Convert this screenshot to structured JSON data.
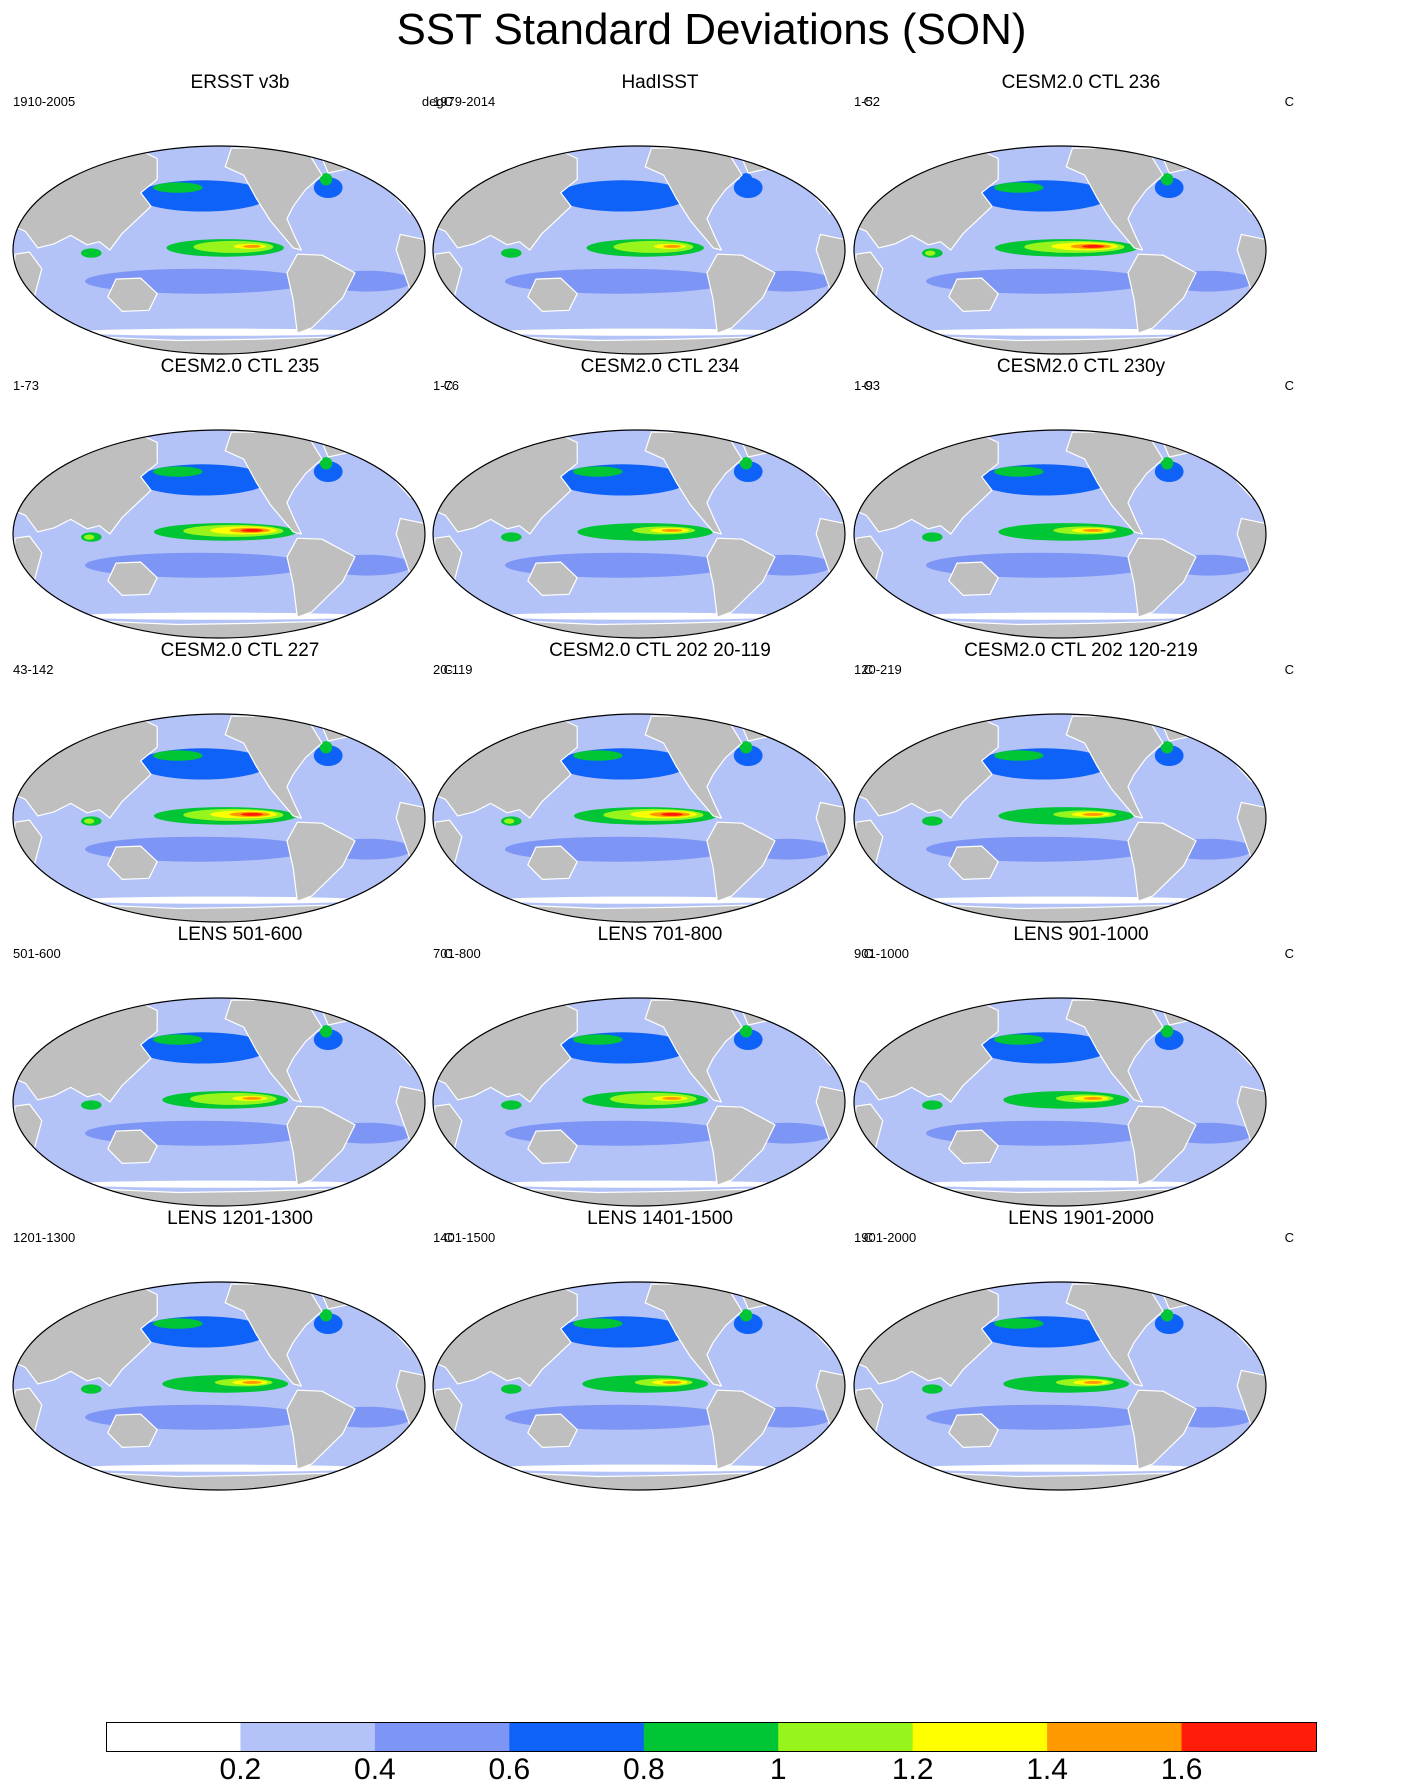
{
  "title": "SST Standard Deviations (SON)",
  "panels": [
    {
      "title": "ERSST v3b",
      "period": "1910-2005",
      "unit": "degC",
      "amp": 0.92,
      "ext": 0.72,
      "np": 0.9
    },
    {
      "title": "HadISST",
      "period": "1979-2014",
      "unit": "C",
      "amp": 0.92,
      "ext": 0.72,
      "np": 0.85
    },
    {
      "title": "CESM2.0 CTL 236",
      "period": "1-52",
      "unit": "C",
      "amp": 1.0,
      "ext": 0.9,
      "np": 1.0
    },
    {
      "title": "CESM2.0 CTL 235",
      "period": "1-73",
      "unit": "C",
      "amp": 1.0,
      "ext": 0.9,
      "np": 1.0
    },
    {
      "title": "CESM2.0 CTL 234",
      "period": "1-76",
      "unit": "C",
      "amp": 0.9,
      "ext": 0.85,
      "np": 1.0
    },
    {
      "title": "CESM2.0 CTL 230y",
      "period": "1-93",
      "unit": "C",
      "amp": 0.9,
      "ext": 0.85,
      "np": 1.0
    },
    {
      "title": "CESM2.0 CTL 227",
      "period": "43-142",
      "unit": "C",
      "amp": 1.0,
      "ext": 0.9,
      "np": 1.0
    },
    {
      "title": "CESM2.0 CTL 202 20-119",
      "period": "20-119",
      "unit": "C",
      "amp": 1.0,
      "ext": 0.9,
      "np": 1.0
    },
    {
      "title": "CESM2.0 CTL 202 120-219",
      "period": "120-219",
      "unit": "C",
      "amp": 0.88,
      "ext": 0.85,
      "np": 1.0
    },
    {
      "title": "LENS 501-600",
      "period": "501-600",
      "unit": "C",
      "amp": 0.92,
      "ext": 0.78,
      "np": 1.0
    },
    {
      "title": "LENS 701-800",
      "period": "701-800",
      "unit": "C",
      "amp": 0.92,
      "ext": 0.78,
      "np": 1.0
    },
    {
      "title": "LENS 901-1000",
      "period": "901-1000",
      "unit": "C",
      "amp": 0.88,
      "ext": 0.78,
      "np": 1.0
    },
    {
      "title": "LENS 1201-1300",
      "period": "1201-1300",
      "unit": "C",
      "amp": 0.9,
      "ext": 0.78,
      "np": 1.0
    },
    {
      "title": "LENS 1401-1500",
      "period": "1401-1500",
      "unit": "C",
      "amp": 0.88,
      "ext": 0.78,
      "np": 1.0
    },
    {
      "title": "LENS 1901-2000",
      "period": "1901-2000",
      "unit": "C",
      "amp": 0.88,
      "ext": 0.78,
      "np": 1.0
    }
  ],
  "colorbar": {
    "labels": [
      "0.2",
      "0.4",
      "0.6",
      "0.8",
      "1",
      "1.2",
      "1.4",
      "1.6"
    ],
    "boundaries": [
      0.2,
      0.4,
      0.6,
      0.8,
      1.0,
      1.2,
      1.4,
      1.6
    ],
    "colors": [
      "#ffffff",
      "#b3c3f7",
      "#7d95f5",
      "#0f62f7",
      "#00c635",
      "#98f51c",
      "#ffff00",
      "#ff9900",
      "#ff1d0a"
    ]
  },
  "land_color": "#bfbfbf",
  "projection": "robinson, pacific-centered"
}
